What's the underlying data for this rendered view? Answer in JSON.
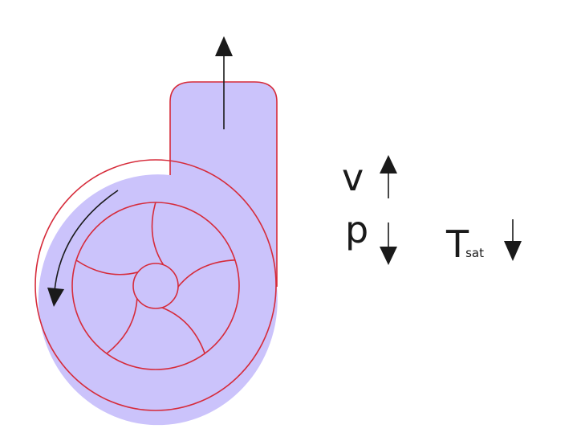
{
  "colors": {
    "casing_fill": "#cbc3fb",
    "outline": "#d62b3a",
    "arrow": "#1a1a1a",
    "background": "#ffffff"
  },
  "labels": {
    "velocity": "v",
    "pressure": "p",
    "saturation_temperature_symbol": "T",
    "saturation_temperature_subscript": "sat"
  },
  "indicators": {
    "velocity": "increase",
    "pressure": "decrease",
    "saturation_temperature": "decrease"
  },
  "impeller": {
    "vane_count": 5
  }
}
